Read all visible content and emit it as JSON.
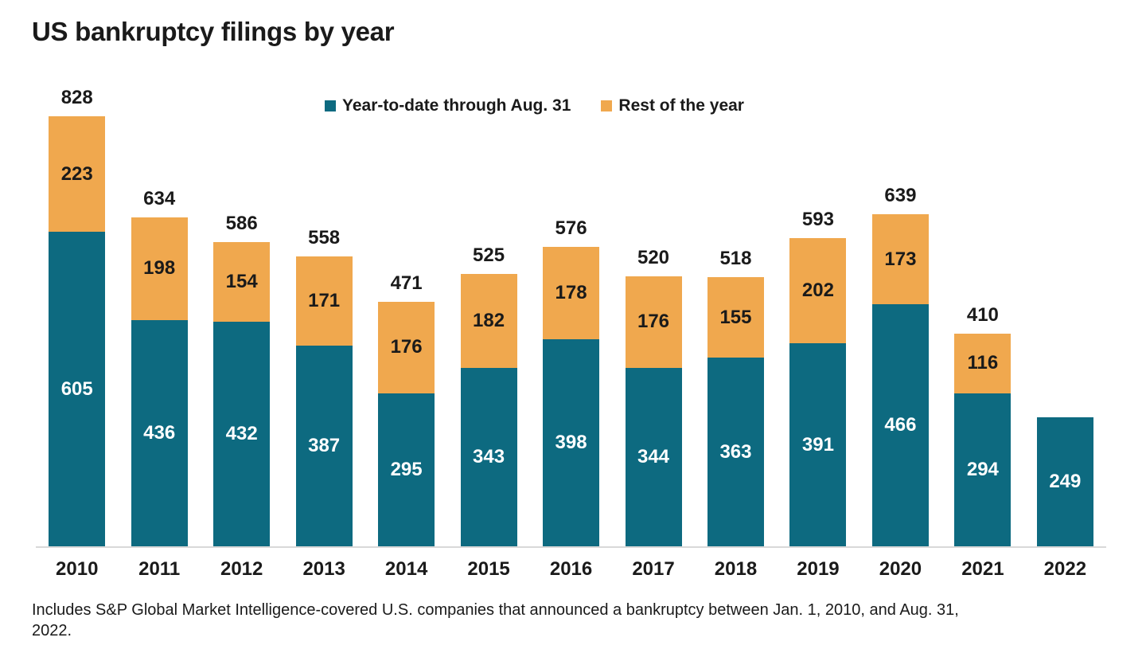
{
  "title": "US bankruptcy filings by year",
  "legend": {
    "items": [
      {
        "label": "Year-to-date through Aug. 31",
        "color": "#0D6A80"
      },
      {
        "label": "Rest of the year",
        "color": "#F0A84E"
      }
    ]
  },
  "footnote": "Includes S&P Global Market Intelligence-covered U.S. companies that announced a bankruptcy between Jan. 1, 2010, and Aug. 31, 2022.",
  "colors": {
    "ytd_bar": "#0D6A80",
    "rest_bar": "#F0A84E",
    "ytd_label": "#FFFFFF",
    "rest_label": "#1A1A1A",
    "axis_line": "#D9D9D9",
    "text": "#1A1A1A"
  },
  "chart_data": {
    "type": "bar",
    "stacked": true,
    "title": "US bankruptcy filings by year",
    "xlabel": "",
    "ylabel": "",
    "grid": false,
    "legend_position": "top",
    "ylim": [
      0,
      828
    ],
    "categories": [
      "2010",
      "2011",
      "2012",
      "2013",
      "2014",
      "2015",
      "2016",
      "2017",
      "2018",
      "2019",
      "2020",
      "2021",
      "2022"
    ],
    "series": [
      {
        "name": "Year-to-date through Aug. 31",
        "color": "#0D6A80",
        "values": [
          605,
          436,
          432,
          387,
          295,
          343,
          398,
          344,
          363,
          391,
          466,
          294,
          249
        ]
      },
      {
        "name": "Rest of the year",
        "color": "#F0A84E",
        "values": [
          223,
          198,
          154,
          171,
          176,
          182,
          178,
          176,
          155,
          202,
          173,
          116,
          null
        ]
      }
    ],
    "total_labels": [
      828,
      634,
      586,
      558,
      471,
      525,
      576,
      520,
      518,
      593,
      639,
      410,
      null
    ]
  }
}
